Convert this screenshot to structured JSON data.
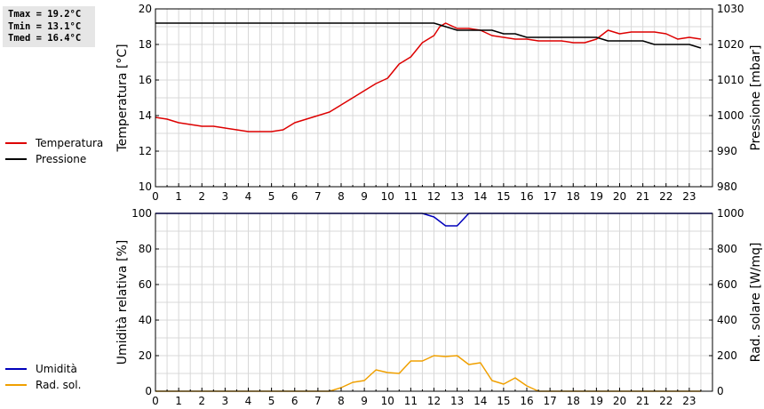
{
  "stats": {
    "tmax": "Tmax = 19.2°C",
    "tmin": "Tmin = 13.1°C",
    "tmed": "Tmed = 16.4°C"
  },
  "colors": {
    "temperatura": "#dd0000",
    "pressione": "#000000",
    "umidita": "#0000bb",
    "rad_sol": "#f0a000",
    "grid": "#d8d8d8"
  },
  "legend_top": [
    {
      "label": "Temperatura",
      "color": "#dd0000"
    },
    {
      "label": "Pressione",
      "color": "#000000"
    }
  ],
  "legend_bottom": [
    {
      "label": "Umidità",
      "color": "#0000bb"
    },
    {
      "label": "Rad. sol.",
      "color": "#f0a000"
    }
  ],
  "chart_data": [
    {
      "type": "line",
      "ylabel": "Temperatura [°C]",
      "y2label": "Pressione [mbar]",
      "xlim": [
        0,
        24
      ],
      "ylim": [
        10,
        20
      ],
      "y2lim": [
        980,
        1030
      ],
      "xticks": [
        "0",
        "1",
        "2",
        "3",
        "4",
        "5",
        "6",
        "7",
        "8",
        "9",
        "10",
        "11",
        "12",
        "13",
        "14",
        "15",
        "16",
        "17",
        "18",
        "19",
        "20",
        "21",
        "22",
        "23"
      ],
      "yticks": [
        "10",
        "12",
        "14",
        "16",
        "18",
        "20"
      ],
      "y2ticks": [
        "980",
        "990",
        "1000",
        "1010",
        "1020",
        "1030"
      ],
      "grid": true,
      "series": [
        {
          "name": "Temperatura",
          "axis": "left",
          "color": "#dd0000",
          "x": [
            0,
            0.5,
            1,
            1.5,
            2,
            2.5,
            3,
            3.5,
            4,
            4.5,
            5,
            5.5,
            6,
            6.5,
            7,
            7.5,
            8,
            8.5,
            9,
            9.5,
            10,
            10.5,
            11,
            11.5,
            12,
            12.25,
            12.5,
            13,
            13.5,
            14,
            14.5,
            15,
            15.5,
            16,
            16.5,
            17,
            17.5,
            18,
            18.5,
            19,
            19.5,
            20,
            20.5,
            21,
            21.5,
            22,
            22.5,
            23,
            23.5
          ],
          "values": [
            13.9,
            13.8,
            13.6,
            13.5,
            13.4,
            13.4,
            13.3,
            13.2,
            13.1,
            13.1,
            13.1,
            13.2,
            13.6,
            13.8,
            14.0,
            14.2,
            14.6,
            15.0,
            15.4,
            15.8,
            16.1,
            16.9,
            17.3,
            18.1,
            18.5,
            19.0,
            19.2,
            18.9,
            18.9,
            18.8,
            18.5,
            18.4,
            18.3,
            18.3,
            18.2,
            18.2,
            18.2,
            18.1,
            18.1,
            18.3,
            18.8,
            18.6,
            18.7,
            18.7,
            18.7,
            18.6,
            18.3,
            18.4,
            18.3
          ]
        },
        {
          "name": "Pressione",
          "axis": "right",
          "color": "#000000",
          "x": [
            0,
            1,
            2,
            3,
            4,
            5,
            6,
            7,
            8,
            9,
            10,
            11,
            12,
            12.5,
            13,
            13.5,
            14,
            14.5,
            15,
            15.5,
            16,
            16.5,
            17,
            17.5,
            18,
            18.5,
            19,
            19.5,
            20,
            20.5,
            21,
            21.5,
            22,
            22.5,
            23,
            23.5
          ],
          "values": [
            1026,
            1026,
            1026,
            1026,
            1026,
            1026,
            1026,
            1026,
            1026,
            1026,
            1026,
            1026,
            1026,
            1025,
            1024,
            1024,
            1024,
            1024,
            1023,
            1023,
            1022,
            1022,
            1022,
            1022,
            1022,
            1022,
            1022,
            1021,
            1021,
            1021,
            1021,
            1020,
            1020,
            1020,
            1020,
            1019
          ]
        }
      ]
    },
    {
      "type": "line",
      "ylabel": "Umidità relativa [%]",
      "y2label": "Rad. solare [W/mq]",
      "xlim": [
        0,
        24
      ],
      "ylim": [
        0,
        100
      ],
      "y2lim": [
        0,
        1000
      ],
      "xticks": [
        "0",
        "1",
        "2",
        "3",
        "4",
        "5",
        "6",
        "7",
        "8",
        "9",
        "10",
        "11",
        "12",
        "13",
        "14",
        "15",
        "16",
        "17",
        "18",
        "19",
        "20",
        "21",
        "22",
        "23"
      ],
      "yticks": [
        "0",
        "20",
        "40",
        "60",
        "80",
        "100"
      ],
      "y2ticks": [
        "0",
        "200",
        "400",
        "600",
        "800",
        "1000"
      ],
      "grid": true,
      "series": [
        {
          "name": "Umidità",
          "axis": "left",
          "color": "#0000bb",
          "x": [
            0,
            11,
            11.5,
            12,
            12.5,
            13,
            13.5,
            14,
            24
          ],
          "values": [
            100,
            100,
            100,
            98,
            93,
            93,
            100,
            100,
            100
          ]
        },
        {
          "name": "Rad. sol.",
          "axis": "right",
          "color": "#f0a000",
          "x": [
            0,
            7.5,
            8,
            8.5,
            9,
            9.5,
            10,
            10.5,
            11,
            11.5,
            12,
            12.5,
            13,
            13.5,
            14,
            14.5,
            15,
            15.5,
            16,
            16.5,
            17,
            23.5
          ],
          "values": [
            0,
            0,
            20,
            50,
            60,
            120,
            105,
            100,
            170,
            170,
            200,
            195,
            200,
            150,
            160,
            60,
            40,
            75,
            30,
            0,
            0,
            0
          ]
        }
      ]
    }
  ]
}
